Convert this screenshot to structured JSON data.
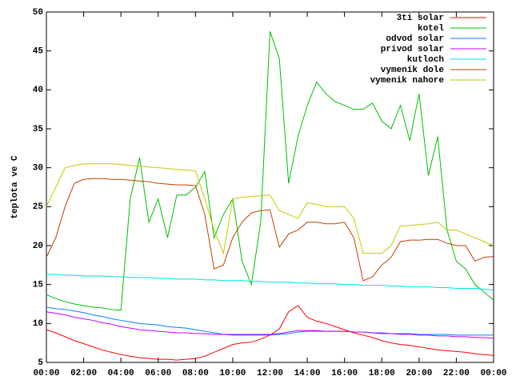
{
  "chart_data": {
    "type": "line",
    "ylabel": "teplota ve C",
    "x": [
      0,
      0.5,
      1,
      1.5,
      2,
      2.5,
      3,
      3.5,
      4,
      4.5,
      5,
      5.5,
      6,
      6.5,
      7,
      7.5,
      8,
      8.5,
      9,
      9.5,
      10,
      10.5,
      11,
      11.5,
      12,
      12.5,
      13,
      13.5,
      14,
      14.5,
      15,
      15.5,
      16,
      16.5,
      17,
      17.5,
      18,
      18.5,
      19,
      19.5,
      20,
      20.5,
      21,
      21.5,
      22,
      22.5,
      23,
      23.5,
      24
    ],
    "xlim": [
      0,
      24
    ],
    "xticks": [
      {
        "value": 0,
        "label": "00:00"
      },
      {
        "value": 2,
        "label": "02:00"
      },
      {
        "value": 4,
        "label": "04:00"
      },
      {
        "value": 6,
        "label": "06:00"
      },
      {
        "value": 8,
        "label": "08:00"
      },
      {
        "value": 10,
        "label": "10:00"
      },
      {
        "value": 12,
        "label": "12:00"
      },
      {
        "value": 14,
        "label": "14:00"
      },
      {
        "value": 16,
        "label": "16:00"
      },
      {
        "value": 18,
        "label": "18:00"
      },
      {
        "value": 20,
        "label": "20:00"
      },
      {
        "value": 22,
        "label": "22:00"
      },
      {
        "value": 24,
        "label": "00:00"
      }
    ],
    "ylim": [
      5,
      50
    ],
    "yticks": [
      5,
      10,
      15,
      20,
      25,
      30,
      35,
      40,
      45,
      50
    ],
    "grid": false,
    "legend": "top-right",
    "series": [
      {
        "name": "3ti solar",
        "color": "#ff0000",
        "values": [
          9.2,
          8.8,
          8.3,
          7.8,
          7.4,
          7.0,
          6.6,
          6.3,
          6.0,
          5.8,
          5.6,
          5.5,
          5.4,
          5.4,
          5.3,
          5.4,
          5.5,
          5.8,
          6.3,
          6.8,
          7.3,
          7.5,
          7.6,
          8.0,
          8.5,
          9.3,
          11.5,
          12.3,
          10.8,
          10.3,
          10.0,
          9.6,
          9.2,
          8.8,
          8.5,
          8.2,
          7.8,
          7.5,
          7.3,
          7.2,
          7.0,
          6.8,
          6.6,
          6.5,
          6.4,
          6.3,
          6.1,
          6.0,
          5.9
        ]
      },
      {
        "name": "kotel",
        "color": "#00c000",
        "values": [
          13.7,
          13.2,
          12.8,
          12.5,
          12.3,
          12.1,
          12.0,
          11.8,
          11.7,
          26,
          31.3,
          23,
          26,
          21,
          26.5,
          26.5,
          27.5,
          29.5,
          21,
          24,
          26,
          18,
          15,
          23,
          47.5,
          44,
          28,
          34,
          38,
          41,
          39.5,
          38.5,
          38,
          37.5,
          37.5,
          38.3,
          36,
          35,
          38,
          33.5,
          39.5,
          29,
          34,
          22,
          18,
          17,
          15,
          14,
          13
        ]
      },
      {
        "name": "odvod solar",
        "color": "#0080ff",
        "values": [
          12.1,
          11.9,
          11.8,
          11.6,
          11.4,
          11.1,
          10.9,
          10.6,
          10.4,
          10.2,
          10.0,
          9.9,
          9.8,
          9.6,
          9.5,
          9.4,
          9.2,
          9.0,
          8.8,
          8.6,
          8.5,
          8.5,
          8.5,
          8.5,
          8.5,
          8.6,
          8.7,
          8.9,
          9.0,
          9.0,
          9.0,
          9.0,
          9.0,
          8.9,
          8.9,
          8.8,
          8.8,
          8.7,
          8.7,
          8.7,
          8.6,
          8.6,
          8.6,
          8.6,
          8.5,
          8.5,
          8.5,
          8.5,
          8.5
        ]
      },
      {
        "name": "privod solar",
        "color": "#c000ff",
        "values": [
          11.5,
          11.3,
          11.1,
          10.8,
          10.6,
          10.4,
          10.1,
          9.9,
          9.6,
          9.4,
          9.2,
          9.1,
          9.0,
          8.9,
          8.8,
          8.8,
          8.7,
          8.7,
          8.6,
          8.6,
          8.6,
          8.6,
          8.6,
          8.6,
          8.6,
          8.7,
          8.9,
          9.1,
          9.1,
          9.1,
          9.0,
          9.0,
          9.0,
          8.9,
          8.9,
          8.8,
          8.7,
          8.7,
          8.6,
          8.6,
          8.5,
          8.5,
          8.4,
          8.4,
          8.3,
          8.3,
          8.2,
          8.2,
          8.1
        ]
      },
      {
        "name": "kutloch",
        "color": "#00e0e0",
        "values": [
          16.3,
          16.3,
          16.2,
          16.2,
          16.1,
          16.1,
          16.1,
          16.0,
          16.0,
          15.9,
          15.9,
          15.9,
          15.8,
          15.8,
          15.7,
          15.7,
          15.7,
          15.6,
          15.6,
          15.5,
          15.5,
          15.5,
          15.4,
          15.4,
          15.3,
          15.3,
          15.3,
          15.2,
          15.2,
          15.1,
          15.1,
          15.1,
          15.0,
          15.0,
          14.9,
          14.9,
          14.9,
          14.8,
          14.8,
          14.7,
          14.7,
          14.7,
          14.6,
          14.6,
          14.5,
          14.5,
          14.5,
          14.4,
          14.3
        ]
      },
      {
        "name": "vymenik dole",
        "color": "#c04000",
        "values": [
          18.5,
          21,
          25,
          28,
          28.5,
          28.6,
          28.6,
          28.5,
          28.5,
          28.4,
          28.3,
          28.2,
          28,
          27.9,
          27.8,
          27.8,
          27.7,
          24,
          17,
          17.5,
          21,
          23,
          24.2,
          24.5,
          24.6,
          19.8,
          21.5,
          22,
          23,
          23,
          22.8,
          22.8,
          23,
          21,
          15.5,
          16,
          17.5,
          18.5,
          20.5,
          20.7,
          20.7,
          20.8,
          20.8,
          20.3,
          20,
          20,
          18,
          18.5,
          18.6
        ]
      },
      {
        "name": "vymenik nahore",
        "color": "#c8c800",
        "values": [
          25,
          27.5,
          30,
          30.3,
          30.5,
          30.5,
          30.5,
          30.5,
          30.4,
          30.3,
          30.2,
          30.1,
          30,
          29.9,
          29.8,
          29.7,
          29.6,
          26,
          22,
          19,
          26,
          26.2,
          26.3,
          26.4,
          26.5,
          24.5,
          24,
          23.5,
          25.5,
          25.3,
          25,
          25,
          25,
          23.5,
          19,
          19,
          19,
          20,
          22.5,
          22.6,
          22.7,
          22.8,
          23,
          22,
          22,
          21.5,
          21,
          20.5,
          20
        ]
      }
    ]
  }
}
